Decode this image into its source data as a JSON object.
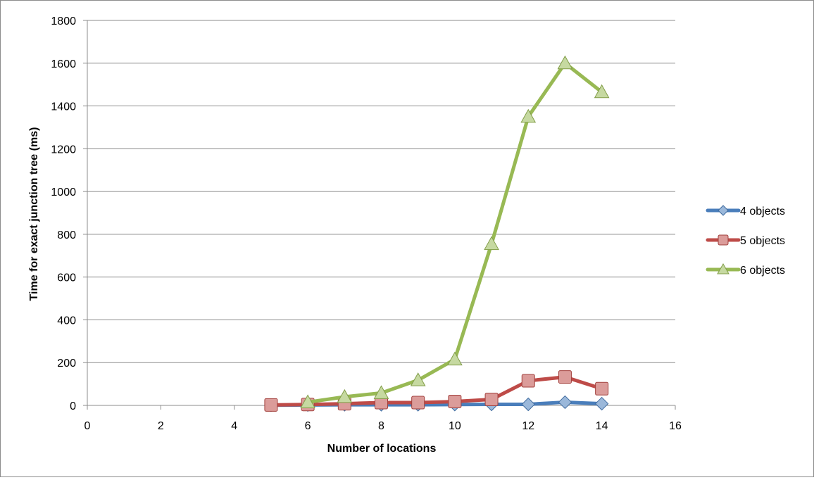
{
  "chart_data": {
    "type": "line",
    "title": "",
    "xlabel": "Number of locations",
    "ylabel": "Time for exact junction tree (ms)",
    "xlim": [
      0,
      16
    ],
    "ylim": [
      0,
      1800
    ],
    "x_ticks": [
      0,
      2,
      4,
      6,
      8,
      10,
      12,
      14,
      16
    ],
    "y_ticks": [
      0,
      200,
      400,
      600,
      800,
      1000,
      1200,
      1400,
      1600,
      1800
    ],
    "grid": "horizontal",
    "legend_position": "right",
    "series": [
      {
        "name": "4 objects",
        "color": "#4a7ebb",
        "marker": "diamond",
        "x": [
          5,
          6,
          7,
          8,
          9,
          10,
          11,
          12,
          13,
          14
        ],
        "values": [
          1,
          2,
          3,
          3,
          3,
          4,
          5,
          5,
          15,
          8
        ]
      },
      {
        "name": "5 objects",
        "color": "#be4b48",
        "marker": "square",
        "x": [
          5,
          6,
          7,
          8,
          9,
          10,
          11,
          12,
          13,
          14
        ],
        "values": [
          2,
          4,
          8,
          13,
          13,
          18,
          28,
          115,
          133,
          78
        ]
      },
      {
        "name": "6 objects",
        "color": "#98b954",
        "marker": "triangle",
        "x": [
          6,
          7,
          8,
          9,
          10,
          11,
          12,
          13,
          14
        ],
        "values": [
          15,
          40,
          58,
          118,
          215,
          755,
          1350,
          1600,
          1465
        ]
      }
    ]
  }
}
